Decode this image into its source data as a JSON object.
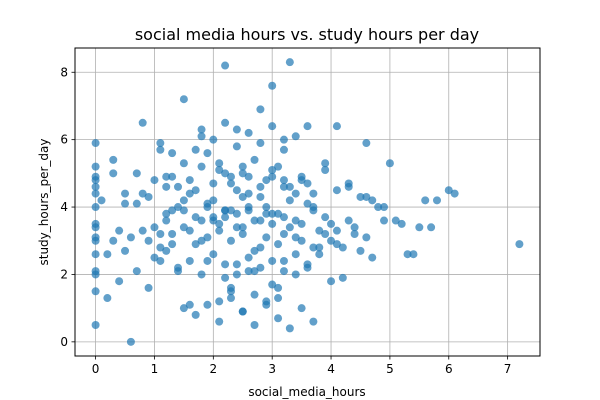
{
  "chart_data": {
    "type": "scatter",
    "title": "social media hours vs. study hours per day",
    "xlabel": "social_media_hours",
    "ylabel": "study_hours_per_day",
    "xlim": [
      -0.35,
      7.55
    ],
    "ylim": [
      -0.42,
      8.72
    ],
    "xticks": [
      0,
      1,
      2,
      3,
      4,
      5,
      6,
      7
    ],
    "yticks": [
      0,
      2,
      4,
      6,
      8
    ],
    "grid": true,
    "point_color": "#1f77b4",
    "point_alpha": 0.7,
    "series": [
      {
        "x": [
          0.0,
          0.0,
          0.0,
          0.0,
          0.0,
          0.0,
          0.0,
          0.0,
          0.0,
          0.0,
          0.0,
          0.0,
          0.0,
          0.0,
          0.0,
          0.0,
          0.2,
          0.3,
          0.3,
          0.4,
          0.5,
          0.5,
          0.6,
          0.7,
          0.7,
          0.8,
          0.8,
          0.9,
          1.0,
          1.1,
          1.1,
          1.2,
          1.2,
          1.3,
          1.3,
          1.4,
          1.5,
          1.5,
          1.6,
          1.6,
          1.7,
          1.8,
          1.8,
          1.9,
          1.9,
          2.0,
          2.1,
          2.2,
          2.2,
          2.3,
          2.3,
          2.4,
          2.5,
          2.5,
          2.6,
          2.7,
          2.8,
          2.9,
          3.0,
          3.0,
          3.1,
          3.2,
          3.2,
          3.3,
          3.4,
          3.5,
          3.6,
          3.6,
          3.7,
          3.8,
          3.9,
          4.0,
          4.1,
          4.2,
          4.3,
          4.4,
          4.5,
          4.6,
          4.6,
          4.7,
          4.8,
          4.9,
          5.0,
          5.1,
          5.2,
          5.3,
          5.4,
          5.5,
          5.6,
          5.7,
          5.8,
          6.0,
          6.1,
          7.2,
          0.1,
          0.2,
          0.4,
          0.6,
          0.8,
          1.0,
          1.2,
          1.4,
          1.6,
          1.8,
          2.0,
          2.2,
          2.4,
          2.6,
          2.8,
          3.0,
          3.2,
          3.4,
          3.6,
          3.8,
          4.0,
          4.2,
          4.4,
          4.6,
          0.3,
          0.5,
          0.7,
          0.9,
          1.1,
          1.3,
          1.5,
          1.7,
          1.9,
          2.1,
          2.3,
          2.5,
          2.7,
          2.9,
          3.1,
          3.3,
          3.5,
          3.7,
          3.9,
          4.1,
          4.3,
          4.5,
          4.7,
          4.9,
          1.0,
          1.2,
          1.4,
          1.6,
          1.8,
          2.0,
          2.2,
          2.4,
          2.6,
          2.8,
          3.0,
          3.2,
          3.4,
          3.6,
          3.8,
          4.0,
          1.5,
          1.7,
          1.9,
          2.1,
          2.3,
          2.5,
          2.7,
          2.9,
          3.1,
          3.3,
          3.5,
          3.7,
          1.8,
          2.0,
          2.2,
          2.4,
          2.6,
          2.8,
          3.0,
          3.2,
          3.4,
          2.0,
          2.2,
          2.4,
          2.6,
          2.8,
          3.0,
          3.2,
          1.1,
          1.3,
          1.5,
          1.7,
          1.9,
          2.1,
          2.3,
          2.5,
          2.7,
          2.9,
          3.1,
          3.3,
          3.5,
          3.7,
          3.9,
          4.1,
          4.3,
          0.9,
          1.1,
          1.3,
          1.5,
          1.7,
          1.9,
          2.1,
          2.3,
          2.5,
          2.7,
          2.9,
          3.1,
          3.3,
          3.5,
          3.7,
          3.9,
          4.1,
          1.2,
          1.4,
          1.6,
          1.8,
          2.0,
          2.2,
          2.4,
          2.6,
          2.8,
          3.0,
          3.2,
          3.4,
          3.6,
          2.1,
          2.3,
          2.5,
          2.7,
          2.9,
          3.1,
          2.2,
          2.4,
          2.6,
          2.8,
          3.0,
          3.2,
          3.4
        ],
        "y": [
          5.9,
          5.2,
          4.9,
          4.6,
          4.4,
          4.0,
          3.5,
          3.4,
          3.1,
          3.0,
          2.6,
          2.1,
          2.0,
          1.5,
          0.5,
          4.8,
          1.3,
          5.4,
          3.0,
          1.8,
          2.7,
          4.4,
          0.0,
          2.1,
          4.1,
          3.3,
          6.5,
          1.6,
          4.8,
          2.4,
          5.9,
          3.6,
          4.6,
          2.9,
          5.6,
          2.1,
          3.9,
          7.2,
          1.1,
          4.4,
          5.7,
          3.0,
          6.1,
          4.0,
          2.4,
          3.6,
          5.3,
          8.2,
          3.9,
          4.9,
          1.6,
          6.3,
          3.4,
          5.2,
          4.4,
          2.1,
          6.9,
          3.8,
          7.6,
          4.9,
          1.6,
          4.6,
          6.0,
          8.3,
          3.1,
          4.8,
          2.3,
          6.4,
          4.0,
          2.8,
          5.3,
          3.5,
          6.4,
          1.9,
          4.6,
          3.2,
          2.7,
          4.3,
          5.9,
          2.5,
          4.0,
          3.6,
          5.3,
          3.6,
          3.5,
          2.6,
          2.6,
          3.4,
          4.2,
          3.4,
          4.2,
          4.5,
          4.4,
          2.9,
          4.2,
          2.6,
          3.3,
          3.1,
          4.4,
          3.4,
          3.8,
          4.0,
          3.3,
          3.6,
          4.2,
          3.7,
          3.4,
          3.9,
          4.3,
          3.5,
          3.2,
          3.6,
          4.1,
          3.3,
          3.0,
          2.8,
          3.4,
          3.1,
          5.0,
          4.1,
          5.0,
          4.3,
          5.7,
          4.9,
          5.3,
          4.5,
          5.6,
          5.1,
          4.7,
          5.0,
          5.4,
          4.8,
          5.2,
          4.6,
          4.9,
          4.4,
          5.1,
          4.5,
          4.7,
          4.3,
          4.2,
          4.0,
          2.5,
          2.7,
          2.2,
          2.4,
          2.0,
          2.6,
          1.9,
          2.3,
          2.1,
          2.8,
          1.7,
          2.4,
          2.0,
          2.2,
          2.6,
          1.8,
          1.0,
          0.8,
          1.1,
          0.6,
          1.3,
          0.9,
          0.5,
          1.2,
          0.7,
          0.4,
          1.0,
          0.6,
          6.3,
          6.0,
          6.5,
          5.8,
          6.2,
          5.9,
          6.4,
          5.7,
          6.1,
          3.7,
          3.9,
          3.8,
          4.0,
          3.6,
          3.8,
          3.7,
          3.2,
          3.9,
          4.2,
          3.7,
          4.1,
          3.5,
          3.9,
          4.3,
          3.6,
          4.0,
          3.8,
          4.2,
          3.5,
          3.9,
          3.7,
          3.3,
          3.6,
          3.0,
          2.8,
          3.2,
          3.4,
          2.9,
          3.1,
          3.3,
          3.0,
          3.2,
          2.7,
          3.1,
          2.9,
          3.4,
          3.0,
          2.8,
          3.2,
          2.9,
          4.9,
          4.6,
          4.8,
          5.2,
          4.7,
          5.0,
          4.5,
          4.9,
          4.6,
          5.1,
          4.8,
          4.4,
          4.7,
          1.2,
          1.5,
          0.9,
          1.4,
          1.1,
          1.3,
          2.3,
          2.0,
          2.5,
          2.2,
          2.4,
          2.1,
          2.6
        ]
      }
    ]
  }
}
